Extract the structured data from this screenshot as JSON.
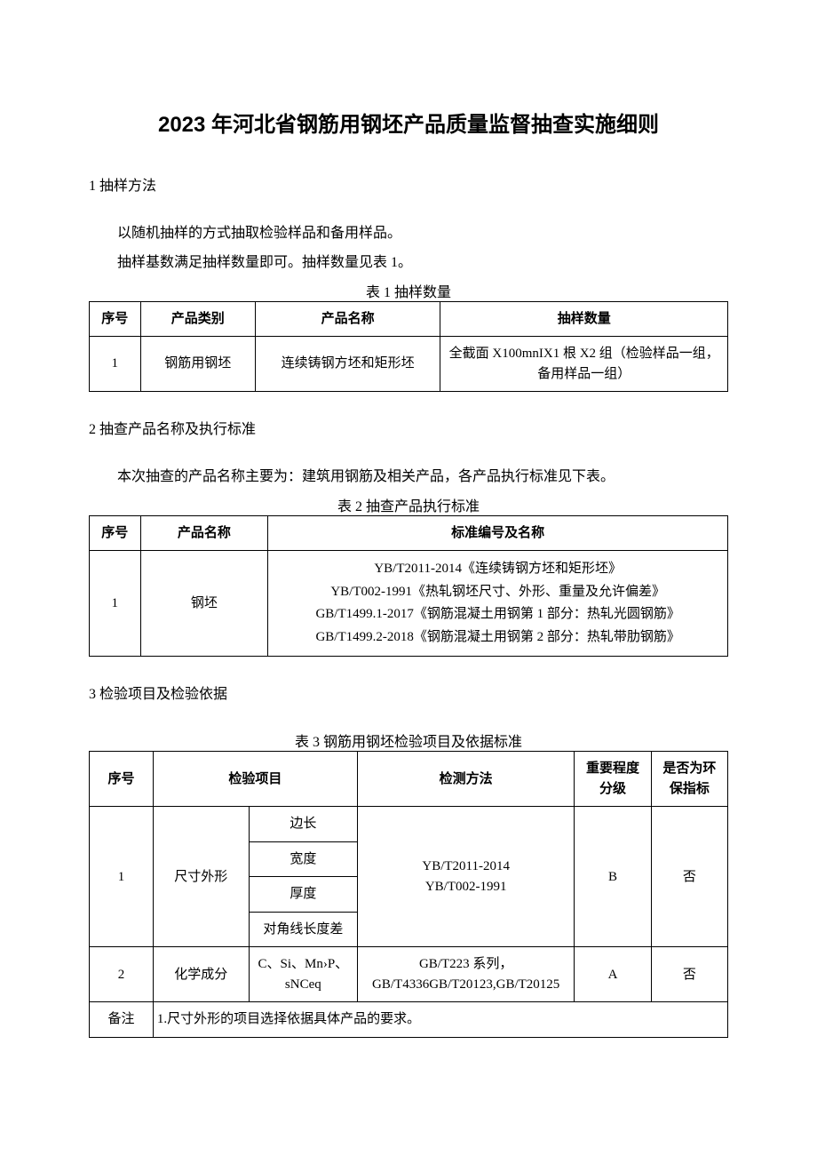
{
  "title": "2023 年河北省钢筋用钢坯产品质量监督抽查实施细则",
  "section1": {
    "heading": "1 抽样方法",
    "p1": "以随机抽样的方式抽取检验样品和备用样品。",
    "p2": "抽样基数满足抽样数量即可。抽样数量见表 1。",
    "table_caption": "表 1 抽样数量",
    "table": {
      "headers": [
        "序号",
        "产品类别",
        "产品名称",
        "抽样数量"
      ],
      "rows": [
        [
          "1",
          "钢筋用钢坯",
          "连续铸钢方坯和矩形坯",
          "全截面 X100mnIX1 根 X2 组（检验样品一组，备用样品一组）"
        ]
      ]
    }
  },
  "section2": {
    "heading": "2 抽查产品名称及执行标准",
    "p1": "本次抽查的产品名称主要为：建筑用钢筋及相关产品，各产品执行标准见下表。",
    "table_caption": "表 2 抽查产品执行标准",
    "table": {
      "headers": [
        "序号",
        "产品名称",
        "标准编号及名称"
      ],
      "rows": [
        {
          "seq": "1",
          "name": "钢坯",
          "std1": "YB/T2011-2014《连续铸钢方坯和矩形坯》",
          "std2": "YB/T002-1991《热轧钢坯尺寸、外形、重量及允许偏差》",
          "std3": "GB/T1499.1-2017《钢筋混凝土用钢第 1 部分：热轧光圆钢筋》",
          "std4": "GB/T1499.2-2018《钢筋混凝土用钢第 2 部分：热轧带肋钢筋》"
        }
      ]
    }
  },
  "section3": {
    "heading": "3 检验项目及检验依据",
    "table_caption": "表 3 钢筋用钢坯检验项目及依据标准",
    "table": {
      "headers": [
        "序号",
        "检验项目",
        "检测方法",
        "重要程度分级",
        "是否为环保指标"
      ],
      "row1": {
        "seq": "1",
        "item": "尺寸外形",
        "sub1": "边长",
        "sub2": "宽度",
        "sub3": "厚度",
        "sub4": "对角线长度差",
        "method1": "YB/T2011-2014",
        "method2": "YB/T002-1991",
        "level": "B",
        "env": "否"
      },
      "row2": {
        "seq": "2",
        "item": "化学成分",
        "sub": "C、Si、Mn›P、sNCeq",
        "method": "GB/T223 系列，GB/T4336GB/T20123,GB/T20125",
        "level": "A",
        "env": "否"
      },
      "note_label": "备注",
      "note_text": "1.尺寸外形的项目选择依据具体产品的要求。"
    }
  }
}
